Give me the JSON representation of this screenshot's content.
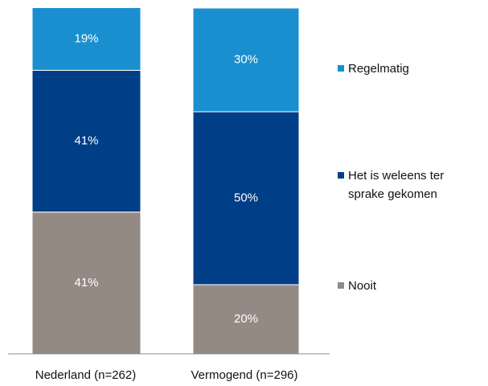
{
  "chart_data": {
    "type": "stacked_bar",
    "categories": [
      "Nederland (n=262)",
      "Vermogend (n=296)"
    ],
    "series": [
      {
        "name": "Nooit",
        "color": "#948a84",
        "values": [
          41,
          20
        ],
        "value_labels": [
          "41%",
          "20%"
        ]
      },
      {
        "name": "Het is weleens ter sprake gekomen",
        "color": "#003f87",
        "values": [
          41,
          50
        ],
        "value_labels": [
          "41%",
          "50%"
        ]
      },
      {
        "name": "Regelmatig",
        "color": "#1a8fd0",
        "values": [
          19,
          30
        ],
        "value_labels": [
          "19%",
          "30%"
        ]
      }
    ],
    "ylim": [
      0,
      100
    ]
  }
}
